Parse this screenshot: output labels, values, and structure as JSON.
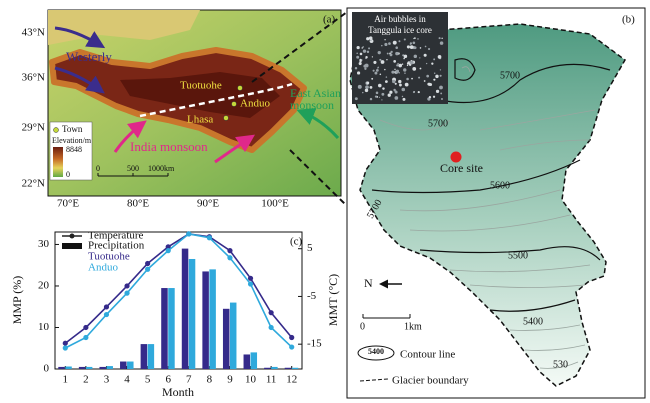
{
  "panel_a": {
    "label": "(a)",
    "lat_labels": [
      "43°N",
      "36°N",
      "29°N",
      "22°N"
    ],
    "lon_labels": [
      "70°E",
      "80°E",
      "90°E",
      "100°E"
    ],
    "westerly": "Westerly",
    "towns": [
      "Tuotuohe",
      "Anduo",
      "Lhasa"
    ],
    "east_asian_monsoon": [
      "East Asian",
      "monsoon"
    ],
    "india_monsoon": "India monsoon",
    "legend": {
      "town": "Town",
      "elevation": "Elevation/m",
      "max": "8848",
      "min": "0"
    },
    "scale": [
      "0",
      "500",
      "1000km"
    ]
  },
  "panel_b": {
    "label": "(b)",
    "photo_caption": [
      "Air bubbles in",
      "Tanggula ice core"
    ],
    "contour_labels": [
      "5700",
      "5700",
      "5700",
      "5600",
      "5500",
      "5400",
      "530"
    ],
    "core_site": "Core site",
    "north": "N",
    "scale": [
      "0",
      "1km"
    ],
    "legend": {
      "contour_sample": "5400",
      "contour": "Contour line",
      "boundary": "Glacier boundary"
    }
  },
  "chart_data": {
    "type": "bar",
    "label": "(c)",
    "xlabel": "Month",
    "ylabel": "MMP (%)",
    "y2label": "MMT (°C)",
    "categories": [
      "1",
      "2",
      "3",
      "4",
      "5",
      "6",
      "7",
      "8",
      "9",
      "10",
      "11",
      "12"
    ],
    "ylim": [
      0,
      33
    ],
    "yticks": [
      0,
      10,
      20,
      30
    ],
    "y2lim": [
      -20.2,
      8.5
    ],
    "y2ticks": [
      -15,
      -5,
      5
    ],
    "legend_items": {
      "line": "Temperature",
      "bar": "Precipitation"
    },
    "series": [
      {
        "name": "Tuotuohe",
        "type": "bar",
        "color": "#352a8a",
        "values": [
          0.5,
          0.5,
          0.5,
          1.8,
          6,
          19.5,
          29,
          23.5,
          14.5,
          3.5,
          0.3,
          0.3
        ]
      },
      {
        "name": "Anduo",
        "type": "bar",
        "color": "#2fa9dc",
        "values": [
          0.6,
          0.5,
          0.7,
          1.8,
          6,
          19.5,
          26.5,
          24,
          16,
          4,
          0.5,
          0.3
        ]
      },
      {
        "type": "line",
        "axis": "y2",
        "color": "#352a8a",
        "values": [
          -14.8,
          -11.5,
          -7.2,
          -2.8,
          1.9,
          5.4,
          8.1,
          7.5,
          4.6,
          -1.2,
          -8.4,
          -13.6
        ]
      },
      {
        "type": "line",
        "axis": "y2",
        "color": "#2fa9dc",
        "values": [
          -15.8,
          -13.6,
          -8.8,
          -4.3,
          0.7,
          4.6,
          8.1,
          7.3,
          3.1,
          -2.4,
          -11.5,
          -15.6
        ]
      }
    ]
  }
}
